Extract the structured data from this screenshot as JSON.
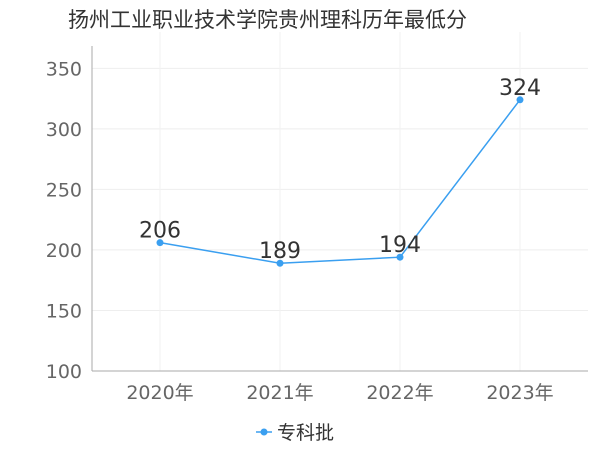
{
  "chart_data": {
    "type": "line",
    "title": "扬州工业职业技术学院贵州理科历年最低分",
    "categories": [
      "2020年",
      "2021年",
      "2022年",
      "2023年"
    ],
    "series": [
      {
        "name": "专科批",
        "values": [
          206,
          189,
          194,
          324
        ]
      }
    ],
    "ylim": [
      100,
      380
    ],
    "yticks": [
      100,
      150,
      200,
      250,
      300,
      350
    ],
    "xlabel": "",
    "ylabel": "",
    "grid": true,
    "legend_position": "bottom-center",
    "series_color": "#3a9ff0"
  }
}
